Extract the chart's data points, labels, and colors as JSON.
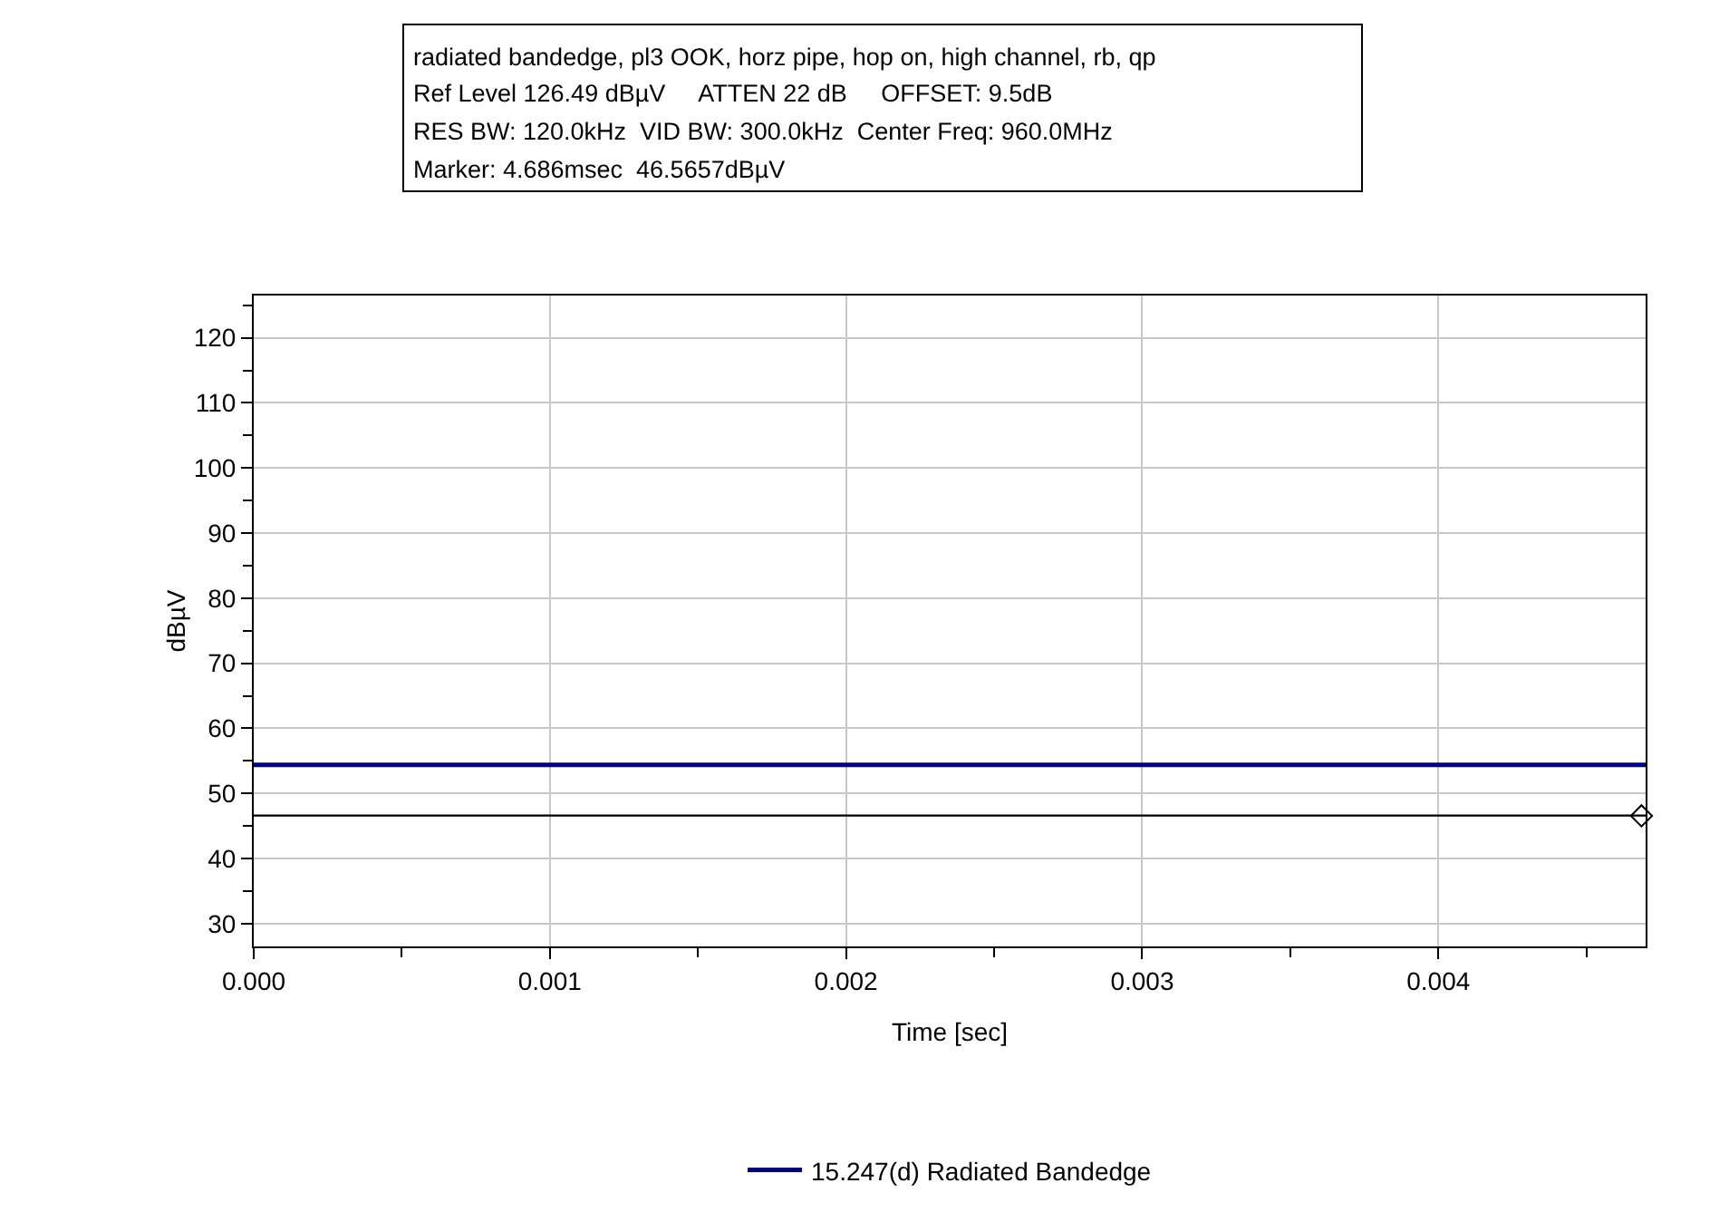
{
  "chart_data": {
    "type": "line",
    "title": "radiated bandedge, pl3 OOK, horz pipe, hop on, high channel, rb, qp",
    "annotations": [
      "Ref Level 126.49 dBµV     ATTEN 22 dB     OFFSET: 9.5dB",
      "RES BW: 120.0kHz  VID BW: 300.0kHz  Center Freq: 960.0MHz",
      "Marker: 4.686msec  46.5657dBµV"
    ],
    "xlabel": "Time [sec]",
    "ylabel": "dBµV",
    "x": [
      0,
      0.0047
    ],
    "series": [
      {
        "name": "15.247(d) Radiated Bandedge",
        "color": "#000080",
        "values": [
          54.4,
          54.4
        ]
      },
      {
        "color": "#000000",
        "values": [
          46.6,
          46.6
        ]
      },
      {
        "type": "scatter",
        "color": "#000000",
        "x": [
          0.004686
        ],
        "values": [
          46.5657
        ],
        "marker": "diamond"
      }
    ],
    "xlim": [
      0,
      0.0047
    ],
    "ylim": [
      26.5,
      126.49
    ],
    "xticks": [
      {
        "value": 0,
        "label": "0.000"
      },
      {
        "value": 0.0005,
        "label": null
      },
      {
        "value": 0.001,
        "label": "0.001"
      },
      {
        "value": 0.0015,
        "label": null
      },
      {
        "value": 0.002,
        "label": "0.002"
      },
      {
        "value": 0.0025,
        "label": null
      },
      {
        "value": 0.003,
        "label": "0.003"
      },
      {
        "value": 0.0035,
        "label": null
      },
      {
        "value": 0.004,
        "label": "0.004"
      },
      {
        "value": 0.0045,
        "label": null
      }
    ],
    "yticks": [
      {
        "value": 30,
        "label": "30"
      },
      {
        "value": 35,
        "label": null
      },
      {
        "value": 40,
        "label": "40"
      },
      {
        "value": 45,
        "label": null
      },
      {
        "value": 50,
        "label": "50"
      },
      {
        "value": 55,
        "label": null
      },
      {
        "value": 60,
        "label": "60"
      },
      {
        "value": 65,
        "label": null
      },
      {
        "value": 70,
        "label": "70"
      },
      {
        "value": 75,
        "label": null
      },
      {
        "value": 80,
        "label": "80"
      },
      {
        "value": 85,
        "label": null
      },
      {
        "value": 90,
        "label": "90"
      },
      {
        "value": 95,
        "label": null
      },
      {
        "value": 100,
        "label": "100"
      },
      {
        "value": 105,
        "label": null
      },
      {
        "value": 110,
        "label": "110"
      },
      {
        "value": 115,
        "label": null
      },
      {
        "value": 120,
        "label": "120"
      },
      {
        "value": 125,
        "label": null
      }
    ],
    "grid": true,
    "legend": "bottom",
    "marker": "none",
    "line_style": "solid"
  }
}
